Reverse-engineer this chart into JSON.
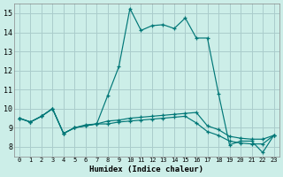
{
  "xlabel": "Humidex (Indice chaleur)",
  "bg_color": "#cceee8",
  "grid_color": "#aacccc",
  "line_color": "#007777",
  "xlim": [
    -0.5,
    23.5
  ],
  "ylim": [
    7.5,
    15.5
  ],
  "xticks": [
    0,
    1,
    2,
    3,
    4,
    5,
    6,
    7,
    8,
    9,
    10,
    11,
    12,
    13,
    14,
    15,
    16,
    17,
    18,
    19,
    20,
    21,
    22,
    23
  ],
  "yticks": [
    8,
    9,
    10,
    11,
    12,
    13,
    14,
    15
  ],
  "lines": [
    [
      9.5,
      9.3,
      9.6,
      10.0,
      8.7,
      9.0,
      9.1,
      9.2,
      10.7,
      12.2,
      15.25,
      14.1,
      14.35,
      14.4,
      14.2,
      14.75,
      13.7,
      13.7,
      10.8,
      8.1,
      8.3,
      8.3,
      7.7,
      8.6
    ],
    [
      9.5,
      9.3,
      9.6,
      10.0,
      8.7,
      9.0,
      9.15,
      9.2,
      9.35,
      9.4,
      9.5,
      9.55,
      9.6,
      9.65,
      9.7,
      9.75,
      9.8,
      9.1,
      8.9,
      8.55,
      8.45,
      8.4,
      8.4,
      8.6
    ],
    [
      9.5,
      9.3,
      9.6,
      10.0,
      8.7,
      9.0,
      9.1,
      9.2,
      9.2,
      9.3,
      9.35,
      9.4,
      9.45,
      9.5,
      9.55,
      9.6,
      9.25,
      8.8,
      8.6,
      8.3,
      8.2,
      8.15,
      8.15,
      8.6
    ]
  ]
}
